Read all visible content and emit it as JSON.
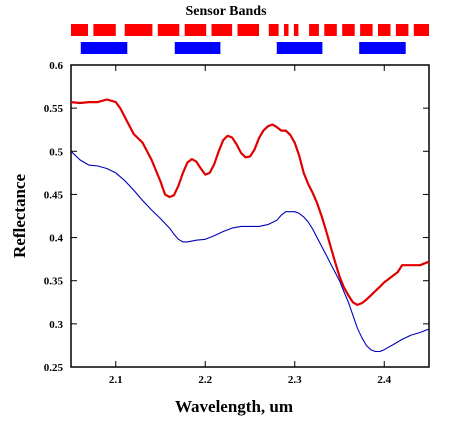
{
  "chart_data": {
    "type": "line",
    "title": "Sensor Bands",
    "xlabel": "Wavelength, um",
    "ylabel": "Reflectance",
    "xlim": [
      2.05,
      2.45
    ],
    "ylim": [
      0.25,
      0.6
    ],
    "x_ticks": [
      2.1,
      2.2,
      2.3,
      2.4
    ],
    "x_tick_labels": [
      "2.1",
      "2.2",
      "2.3",
      "2.4"
    ],
    "y_ticks": [
      0.25,
      0.3,
      0.35,
      0.4,
      0.45,
      0.5,
      0.55,
      0.6
    ],
    "y_tick_labels": [
      "0.25",
      "0.3",
      "0.35",
      "0.4",
      "0.45",
      "0.5",
      "0.55",
      "0.6"
    ],
    "grid": false,
    "sensor_bands": [
      {
        "color": "#ff0000",
        "ranges": [
          [
            2.05,
            2.069
          ],
          [
            2.075,
            2.1
          ],
          [
            2.11,
            2.141
          ],
          [
            2.147,
            2.171
          ],
          [
            2.177,
            2.201
          ],
          [
            2.207,
            2.23
          ],
          [
            2.236,
            2.26
          ],
          [
            2.271,
            2.282
          ],
          [
            2.288,
            2.293
          ],
          [
            2.299,
            2.304
          ],
          [
            2.316,
            2.327
          ],
          [
            2.333,
            2.347
          ],
          [
            2.353,
            2.367
          ],
          [
            2.373,
            2.387
          ],
          [
            2.393,
            2.407
          ],
          [
            2.413,
            2.427
          ],
          [
            2.433,
            2.45
          ]
        ]
      },
      {
        "color": "#0000ff",
        "ranges": [
          [
            2.061,
            2.113
          ],
          [
            2.166,
            2.217
          ],
          [
            2.28,
            2.331
          ],
          [
            2.372,
            2.424
          ]
        ]
      }
    ],
    "series": [
      {
        "color": "#e00000",
        "x": [
          2.05,
          2.06,
          2.07,
          2.08,
          2.09,
          2.1,
          2.105,
          2.11,
          2.12,
          2.13,
          2.14,
          2.15,
          2.155,
          2.16,
          2.165,
          2.17,
          2.175,
          2.18,
          2.185,
          2.19,
          2.195,
          2.2,
          2.205,
          2.21,
          2.215,
          2.22,
          2.225,
          2.23,
          2.235,
          2.24,
          2.245,
          2.25,
          2.255,
          2.26,
          2.265,
          2.27,
          2.275,
          2.28,
          2.285,
          2.29,
          2.295,
          2.3,
          2.305,
          2.31,
          2.315,
          2.32,
          2.325,
          2.33,
          2.335,
          2.34,
          2.345,
          2.35,
          2.355,
          2.36,
          2.365,
          2.37,
          2.375,
          2.38,
          2.385,
          2.39,
          2.395,
          2.4,
          2.405,
          2.41,
          2.415,
          2.42,
          2.43,
          2.44,
          2.45
        ],
        "y": [
          0.557,
          0.556,
          0.557,
          0.557,
          0.56,
          0.557,
          0.55,
          0.54,
          0.52,
          0.51,
          0.49,
          0.465,
          0.45,
          0.447,
          0.449,
          0.46,
          0.475,
          0.487,
          0.491,
          0.488,
          0.48,
          0.473,
          0.475,
          0.485,
          0.5,
          0.513,
          0.518,
          0.516,
          0.508,
          0.498,
          0.493,
          0.494,
          0.502,
          0.515,
          0.524,
          0.529,
          0.531,
          0.528,
          0.524,
          0.524,
          0.519,
          0.51,
          0.495,
          0.475,
          0.462,
          0.452,
          0.44,
          0.425,
          0.408,
          0.39,
          0.372,
          0.355,
          0.342,
          0.333,
          0.325,
          0.322,
          0.324,
          0.328,
          0.333,
          0.338,
          0.343,
          0.348,
          0.352,
          0.356,
          0.36,
          0.368,
          0.368,
          0.368,
          0.372
        ]
      },
      {
        "color": "#0000bb",
        "x": [
          2.05,
          2.06,
          2.07,
          2.08,
          2.09,
          2.1,
          2.11,
          2.12,
          2.13,
          2.14,
          2.15,
          2.16,
          2.165,
          2.17,
          2.175,
          2.18,
          2.19,
          2.2,
          2.21,
          2.22,
          2.23,
          2.24,
          2.25,
          2.26,
          2.27,
          2.28,
          2.285,
          2.29,
          2.295,
          2.3,
          2.305,
          2.31,
          2.315,
          2.32,
          2.325,
          2.33,
          2.335,
          2.34,
          2.345,
          2.35,
          2.355,
          2.36,
          2.365,
          2.37,
          2.375,
          2.38,
          2.385,
          2.39,
          2.395,
          2.4,
          2.41,
          2.42,
          2.43,
          2.44,
          2.45
        ],
        "y": [
          0.5,
          0.49,
          0.484,
          0.483,
          0.48,
          0.475,
          0.466,
          0.455,
          0.443,
          0.432,
          0.422,
          0.411,
          0.404,
          0.398,
          0.395,
          0.395,
          0.397,
          0.398,
          0.402,
          0.407,
          0.411,
          0.413,
          0.413,
          0.413,
          0.415,
          0.42,
          0.426,
          0.43,
          0.43,
          0.43,
          0.428,
          0.424,
          0.418,
          0.41,
          0.4,
          0.39,
          0.38,
          0.37,
          0.36,
          0.35,
          0.337,
          0.325,
          0.31,
          0.295,
          0.284,
          0.275,
          0.27,
          0.268,
          0.268,
          0.27,
          0.276,
          0.282,
          0.287,
          0.29,
          0.294
        ]
      }
    ]
  }
}
